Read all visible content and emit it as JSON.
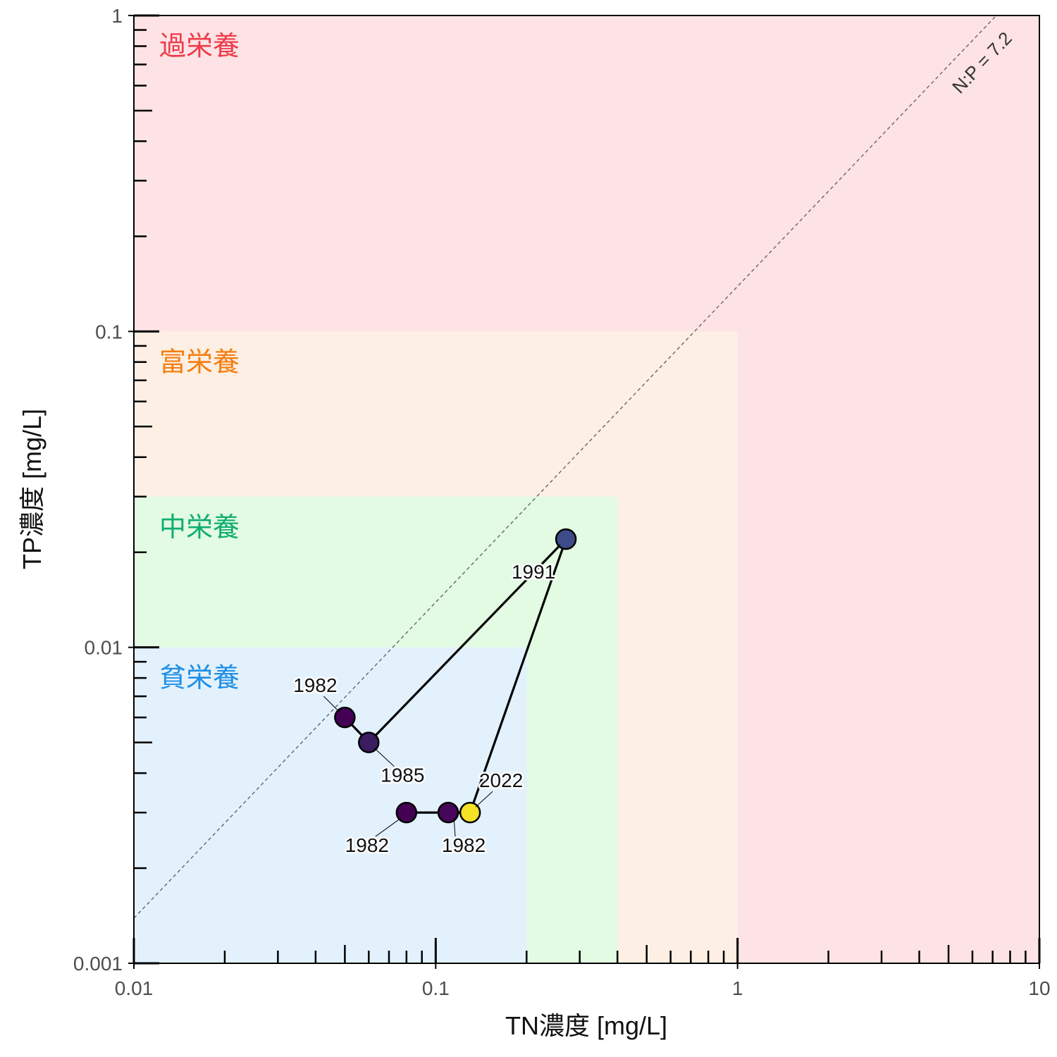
{
  "chart_data": {
    "type": "scatter",
    "xlabel": "TN濃度 [mg/L]",
    "ylabel": "TP濃度 [mg/L]",
    "x_scale": "log",
    "y_scale": "log",
    "xlim": [
      0.01,
      10
    ],
    "ylim": [
      0.001,
      1
    ],
    "x_tick_labels": [
      "0.01",
      "0.1",
      "1",
      "10"
    ],
    "y_tick_labels": [
      "0.001",
      "0.01",
      "0.1",
      "1"
    ],
    "zones": [
      {
        "label": "貧栄養",
        "tn_max": 0.2,
        "tp_max": 0.01,
        "color": "#e3f1fd",
        "label_color": "#1f8fe6"
      },
      {
        "label": "中栄養",
        "tn_max": 0.4,
        "tp_max": 0.03,
        "color": "#e2fbe2",
        "label_color": "#11ad72"
      },
      {
        "label": "富栄養",
        "tn_max": 1,
        "tp_max": 0.1,
        "color": "#fdefe3",
        "label_color": "#f57e0f"
      },
      {
        "label": "過栄養",
        "tn_max": 10,
        "tp_max": 1,
        "color": "#fde3e5",
        "label_color": "#ef3b4a"
      }
    ],
    "ratio_line": {
      "label": "N:P = 7.2",
      "ratio": 7.2
    },
    "series": [
      {
        "points": [
          {
            "tn": 0.05,
            "tp": 0.006,
            "color": "#440154",
            "label": "1982"
          },
          {
            "tn": 0.06,
            "tp": 0.005,
            "color": "#3b1c5f",
            "label": "1985"
          },
          {
            "tn": 0.27,
            "tp": 0.022,
            "color": "#3e4b89",
            "label": "1991"
          },
          {
            "tn": 0.13,
            "tp": 0.003,
            "color": "#f5e126",
            "label": "2022"
          },
          {
            "tn": 0.11,
            "tp": 0.003,
            "color": "#46065a",
            "label": "1982"
          },
          {
            "tn": 0.08,
            "tp": 0.003,
            "color": "#440154",
            "label": "1982"
          }
        ],
        "path_order": [
          5,
          4,
          3,
          2,
          1,
          0
        ]
      }
    ]
  }
}
